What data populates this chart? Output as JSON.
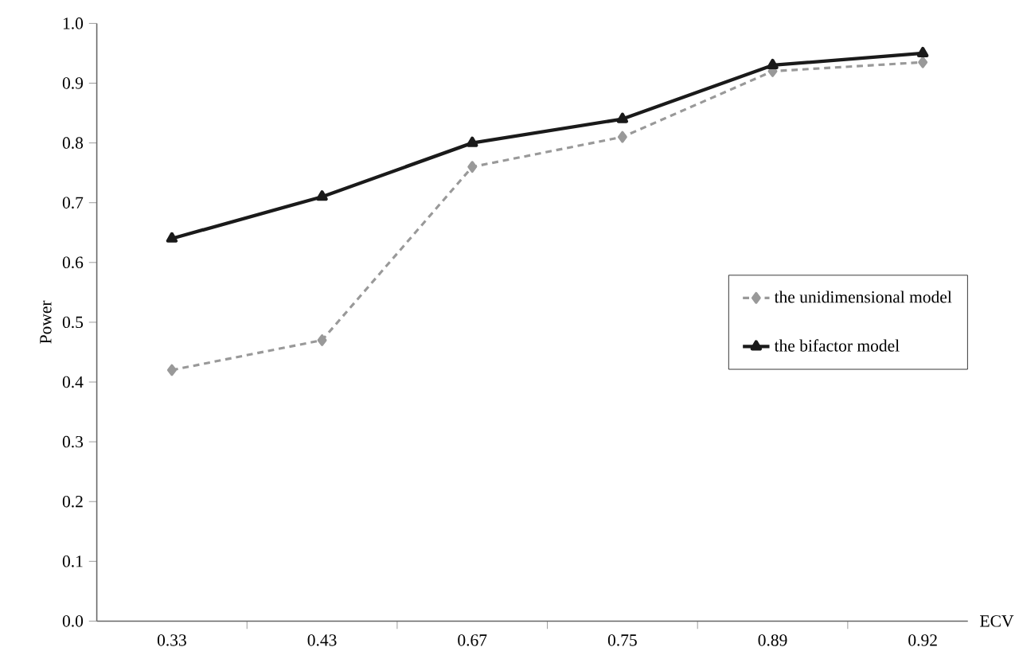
{
  "chart_data": {
    "type": "line",
    "xlabel": "ECV",
    "ylabel": "Power",
    "categories": [
      "0.33",
      "0.43",
      "0.67",
      "0.75",
      "0.89",
      "0.92"
    ],
    "series": [
      {
        "name": "the unidimensional model",
        "color": "#999999",
        "values": [
          0.42,
          0.47,
          0.76,
          0.81,
          0.92,
          0.935
        ],
        "line_style": "dashed",
        "marker": "diamond"
      },
      {
        "name": "the bifactor model",
        "color": "#1a1a1a",
        "values": [
          0.64,
          0.71,
          0.8,
          0.84,
          0.93,
          0.95
        ],
        "line_style": "solid",
        "marker": "triangle"
      }
    ],
    "ylim": [
      0,
      1
    ],
    "yticks": [
      {
        "value": 0,
        "label": "0.0"
      },
      {
        "value": 0.1,
        "label": "0.1"
      },
      {
        "value": 0.2,
        "label": "0.2"
      },
      {
        "value": 0.3,
        "label": "0.3"
      },
      {
        "value": 0.4,
        "label": "0.4"
      },
      {
        "value": 0.5,
        "label": "0.5"
      },
      {
        "value": 0.6,
        "label": "0.6"
      },
      {
        "value": 0.7,
        "label": "0.7"
      },
      {
        "value": 0.8,
        "label": "0.8"
      },
      {
        "value": 0.9,
        "label": "0.9"
      },
      {
        "value": 1,
        "label": "1.0"
      }
    ],
    "grid": false,
    "legend": "right"
  }
}
